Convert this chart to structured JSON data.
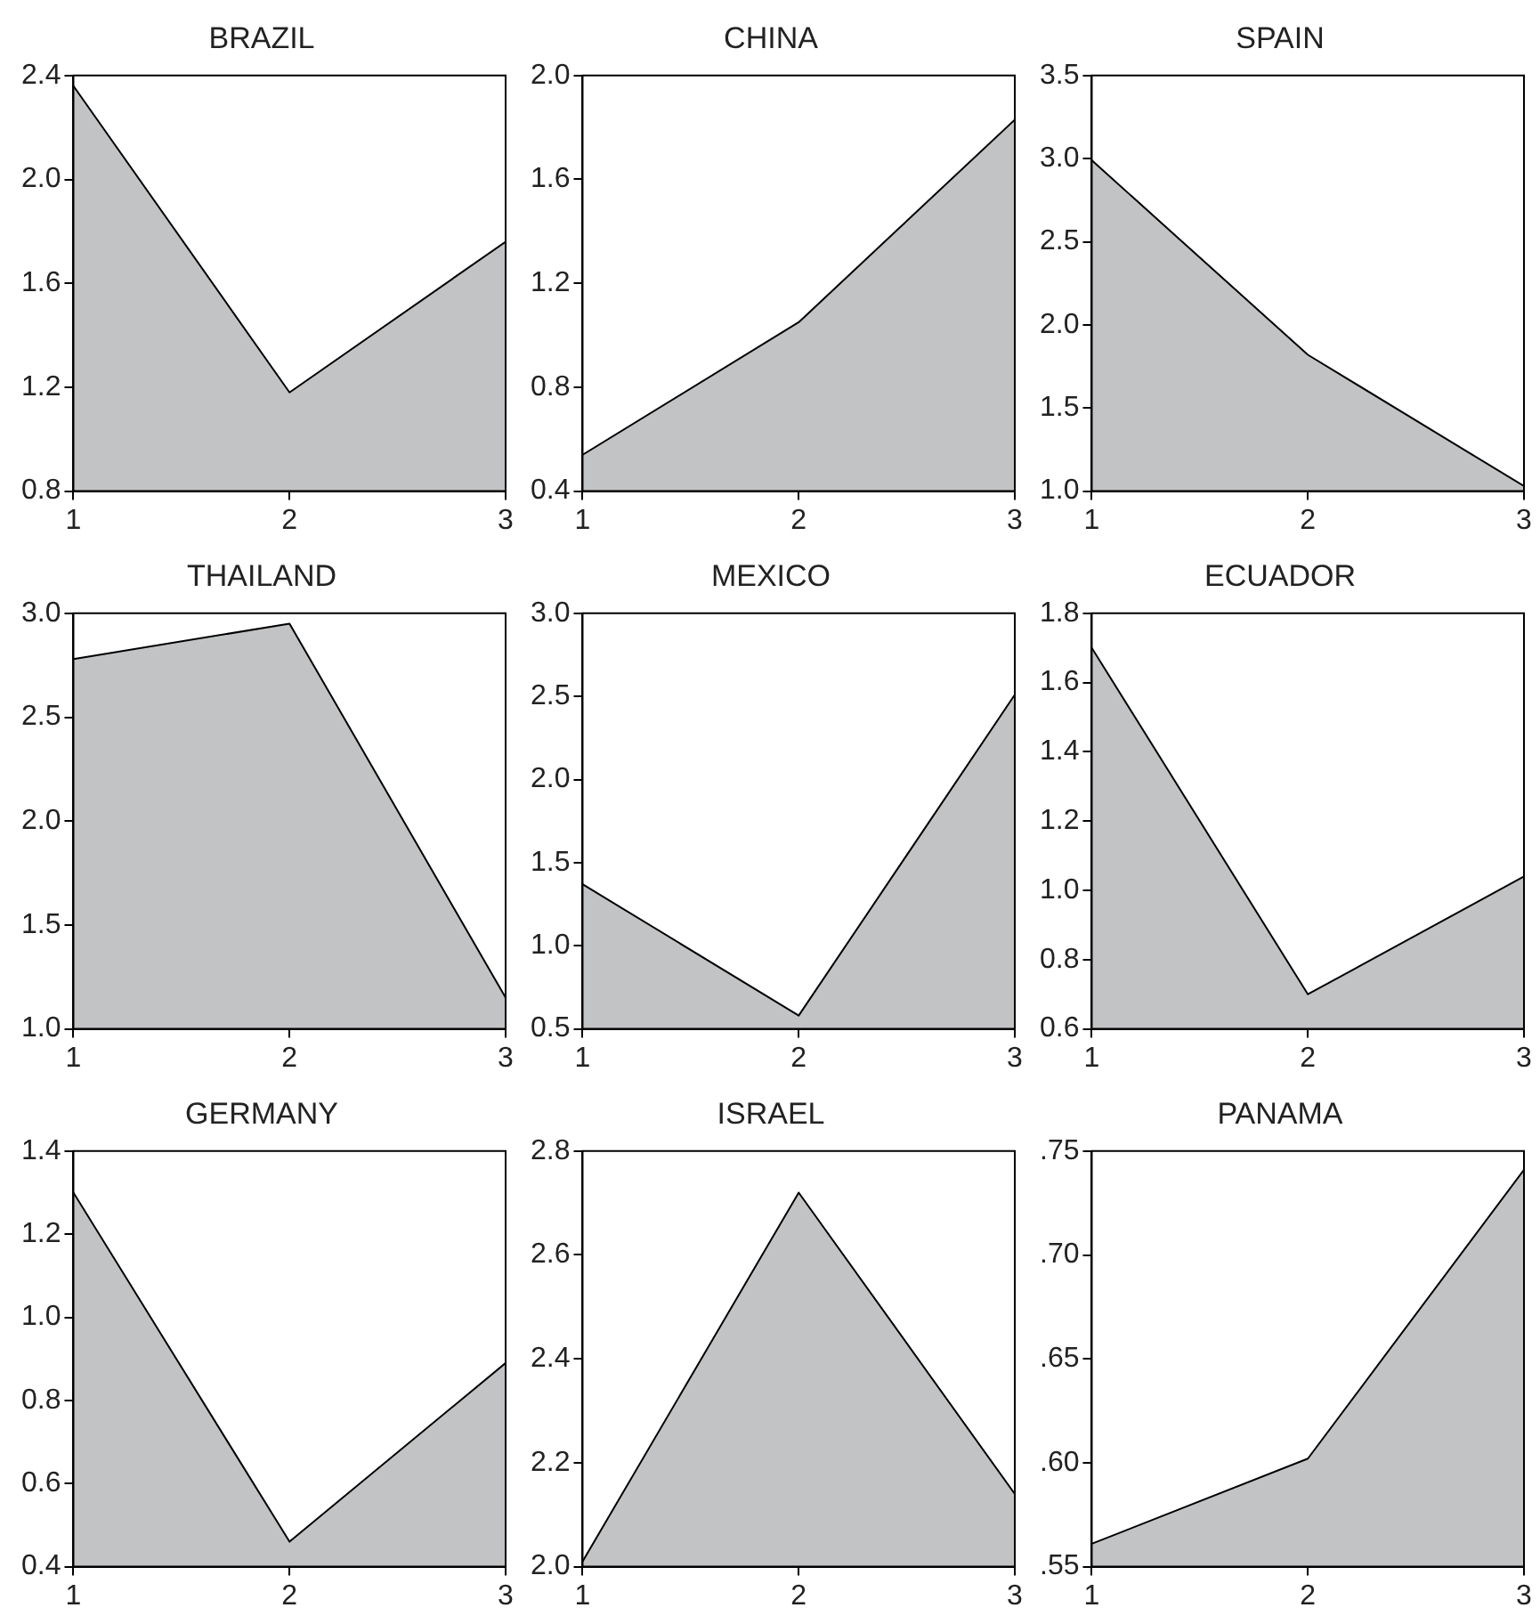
{
  "chart_data": [
    {
      "type": "area",
      "title": "BRAZIL",
      "x": [
        1,
        2,
        3
      ],
      "values": [
        2.36,
        1.18,
        1.76
      ],
      "color": "#c2c3c5",
      "xlim": [
        1,
        3
      ],
      "xticks": [
        1,
        2,
        3
      ],
      "ylim": [
        0.8,
        2.4
      ],
      "yticks": [
        0.8,
        1.2,
        1.6,
        {
          "value": 2,
          "label": "2.0"
        },
        2.4
      ]
    },
    {
      "type": "area",
      "title": "CHINA",
      "x": [
        1,
        2,
        3
      ],
      "values": [
        0.54,
        1.05,
        1.83
      ],
      "color": "#c2c3c5",
      "xlim": [
        1,
        3
      ],
      "xticks": [
        1,
        2,
        3
      ],
      "ylim": [
        0.4,
        2.0
      ],
      "yticks": [
        0.4,
        0.8,
        1.2,
        1.6,
        {
          "value": 2,
          "label": "2.0"
        }
      ]
    },
    {
      "type": "area",
      "title": "SPAIN",
      "x": [
        1,
        2,
        3
      ],
      "values": [
        2.99,
        1.82,
        1.03
      ],
      "color": "#c2c3c5",
      "xlim": [
        1,
        3
      ],
      "xticks": [
        1,
        2,
        3
      ],
      "ylim": [
        1.0,
        3.5
      ],
      "yticks": [
        {
          "value": 1,
          "label": "1.0"
        },
        1.5,
        {
          "value": 2,
          "label": "2.0"
        },
        2.5,
        {
          "value": 3,
          "label": "3.0"
        },
        3.5
      ]
    },
    {
      "type": "area",
      "title": "THAILAND",
      "x": [
        1,
        2,
        3
      ],
      "values": [
        2.78,
        2.95,
        1.15
      ],
      "color": "#c2c3c5",
      "xlim": [
        1,
        3
      ],
      "xticks": [
        1,
        2,
        3
      ],
      "ylim": [
        1.0,
        3.0
      ],
      "yticks": [
        {
          "value": 1,
          "label": "1.0"
        },
        1.5,
        {
          "value": 2,
          "label": "2.0"
        },
        2.5,
        {
          "value": 3,
          "label": "3.0"
        }
      ]
    },
    {
      "type": "area",
      "title": "MEXICO",
      "x": [
        1,
        2,
        3
      ],
      "values": [
        1.37,
        0.58,
        2.51
      ],
      "color": "#c2c3c5",
      "xlim": [
        1,
        3
      ],
      "xticks": [
        1,
        2,
        3
      ],
      "ylim": [
        0.5,
        3.0
      ],
      "yticks": [
        0.5,
        {
          "value": 1,
          "label": "1.0"
        },
        1.5,
        {
          "value": 2,
          "label": "2.0"
        },
        2.5,
        {
          "value": 3,
          "label": "3.0"
        }
      ]
    },
    {
      "type": "area",
      "title": "ECUADOR",
      "x": [
        1,
        2,
        3
      ],
      "values": [
        1.7,
        0.7,
        1.04
      ],
      "color": "#c2c3c5",
      "xlim": [
        1,
        3
      ],
      "xticks": [
        1,
        2,
        3
      ],
      "ylim": [
        0.6,
        1.8
      ],
      "yticks": [
        0.6,
        0.8,
        {
          "value": 1,
          "label": "1.0"
        },
        1.2,
        1.4,
        1.6,
        1.8
      ]
    },
    {
      "type": "area",
      "title": "GERMANY",
      "x": [
        1,
        2,
        3
      ],
      "values": [
        1.3,
        0.46,
        0.89
      ],
      "color": "#c2c3c5",
      "xlim": [
        1,
        3
      ],
      "xticks": [
        1,
        2,
        3
      ],
      "ylim": [
        0.4,
        1.4
      ],
      "yticks": [
        0.4,
        0.6,
        0.8,
        {
          "value": 1,
          "label": "1.0"
        },
        1.2,
        1.4
      ]
    },
    {
      "type": "area",
      "title": "ISRAEL",
      "x": [
        1,
        2,
        3
      ],
      "values": [
        2.01,
        2.72,
        2.14
      ],
      "color": "#c2c3c5",
      "xlim": [
        1,
        3
      ],
      "xticks": [
        1,
        2,
        3
      ],
      "ylim": [
        2.0,
        2.8
      ],
      "yticks": [
        {
          "value": 2,
          "label": "2.0"
        },
        2.2,
        2.4,
        2.6,
        2.8
      ]
    },
    {
      "type": "area",
      "title": "PANAMA",
      "x": [
        1,
        2,
        3
      ],
      "values": [
        0.561,
        0.602,
        0.741
      ],
      "color": "#c2c3c5",
      "xlim": [
        1,
        3
      ],
      "xticks": [
        1,
        2,
        3
      ],
      "ylim": [
        0.55,
        0.75
      ],
      "yticks": [
        {
          "value": 0.55,
          "label": ".55"
        },
        {
          "value": 0.6,
          "label": ".60"
        },
        {
          "value": 0.65,
          "label": ".65"
        },
        {
          "value": 0.7,
          "label": ".70"
        },
        {
          "value": 0.75,
          "label": ".75"
        }
      ]
    }
  ]
}
